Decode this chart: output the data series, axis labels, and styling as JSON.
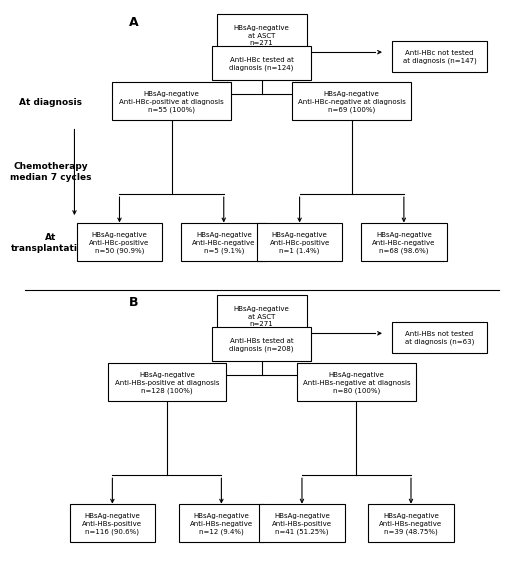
{
  "panel_A_label": "A",
  "panel_B_label": "B",
  "fontsize": 5.0,
  "label_fontsize": 6.5,
  "panel_label_fontsize": 9,
  "lw": 0.8,
  "background_color": "white",
  "edge_color": "black",
  "box_color": "white",
  "A_root_text": "HBsAg-negative\nat ASCT\nn=271",
  "A_tested_text": "Anti-HBc tested at\ndiagnosis (n=124)",
  "A_not_tested_text": "Anti-HBc not tested\nat diagnosis (n=147)",
  "A_pos_diag_text": "HBsAg-negative\nAnti-HBc-positive at diagnosis\nn=55 (100%)",
  "A_neg_diag_text": "HBsAg-negative\nAnti-HBc-negative at diagnosis\nn=69 (100%)",
  "A_bt1_text": "HBsAg-negative\nAnti-HBc-positive\nn=50 (90.9%)",
  "A_bt2_text": "HBsAg-negative\nAnti-HBc-negative\nn=5 (9.1%)",
  "A_bt3_text": "HBsAg-negative\nAnti-HBc-positive\nn=1 (1.4%)",
  "A_bt4_text": "HBsAg-negative\nAnti-HBc-negative\nn=68 (98.6%)",
  "B_root_text": "HBsAg-negative\nat ASCT\nn=271",
  "B_tested_text": "Anti-HBs tested at\ndiagnosis (n=208)",
  "B_not_tested_text": "Anti-HBs not tested\nat diagnosis (n=63)",
  "B_pos_diag_text": "HBsAg-negative\nAnti-HBs-positive at diagnosis\nn=128 (100%)",
  "B_neg_diag_text": "HBsAg-negative\nAnti-HBs-negative at diagnosis\nn=80 (100%)",
  "B_bt1_text": "HBsAg-negative\nAnti-HBs-positive\nn=116 (90.6%)",
  "B_bt2_text": "HBsAg-negative\nAnti-HBs-negative\nn=12 (9.4%)",
  "B_bt3_text": "HBsAg-negative\nAnti-HBs-positive\nn=41 (51.25%)",
  "B_bt4_text": "HBsAg-negative\nAnti-HBs-negative\nn=39 (48.75%)",
  "at_diag_text": "At diagnosis",
  "chemo_text": "Chemotherapy\nmedian 7 cycles",
  "at_trans_text": "At\ntransplantation"
}
